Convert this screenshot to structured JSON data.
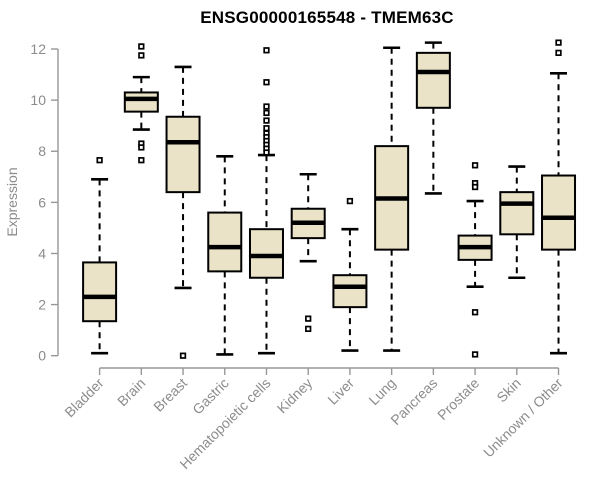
{
  "figure": {
    "background": "#ffffff"
  },
  "colors": {
    "box_fill": "#EAE3C7",
    "box_stroke": "#000000",
    "median_color": "#000000",
    "whisker_color": "#000000",
    "outlier_fill": "#ffffff",
    "axis_line": "#979797",
    "tick_label": "#8C8C8C",
    "title_color": "#000000"
  },
  "chart_data": {
    "type": "boxplot",
    "title": "ENSG00000165548 - TMEM63C",
    "xlabel": "",
    "ylabel": "Expression",
    "ylim": [
      0,
      12.3
    ],
    "yticks": [
      0,
      2,
      4,
      6,
      8,
      10,
      12
    ],
    "grid": false,
    "legend": "none",
    "categories": [
      "Bladder",
      "Brain",
      "Breast",
      "Gastric",
      "Hematopoietic cells",
      "Kidney",
      "Liver",
      "Lung",
      "Pancreas",
      "Prostate",
      "Skin",
      "Unknown / Other"
    ],
    "series": [
      {
        "name": "Bladder",
        "whislo": 0.1,
        "q1": 1.35,
        "med": 2.3,
        "q3": 3.65,
        "whishi": 6.9,
        "outliers": [
          7.65
        ]
      },
      {
        "name": "Brain",
        "whislo": 8.85,
        "q1": 9.55,
        "med": 10.05,
        "q3": 10.3,
        "whishi": 10.9,
        "outliers": [
          12.1,
          11.75,
          8.3,
          8.15,
          7.65
        ]
      },
      {
        "name": "Breast",
        "whislo": 2.65,
        "q1": 6.4,
        "med": 8.35,
        "q3": 9.35,
        "whishi": 11.3,
        "outliers": [
          0.0
        ]
      },
      {
        "name": "Gastric",
        "whislo": 0.05,
        "q1": 3.3,
        "med": 4.25,
        "q3": 5.6,
        "whishi": 7.8,
        "outliers": []
      },
      {
        "name": "Hematopoietic cells",
        "whislo": 0.1,
        "q1": 3.05,
        "med": 3.9,
        "q3": 4.95,
        "whishi": 7.85,
        "outliers": [
          11.95,
          10.7,
          9.75,
          9.5,
          9.2,
          8.9,
          8.7,
          8.55,
          8.4,
          8.25,
          8.1,
          7.95
        ]
      },
      {
        "name": "Kidney",
        "whislo": 3.7,
        "q1": 4.6,
        "med": 5.2,
        "q3": 5.75,
        "whishi": 7.1,
        "outliers": [
          1.45,
          1.05
        ]
      },
      {
        "name": "Liver",
        "whislo": 0.2,
        "q1": 1.9,
        "med": 2.7,
        "q3": 3.15,
        "whishi": 4.95,
        "outliers": [
          6.05
        ]
      },
      {
        "name": "Lung",
        "whislo": 0.2,
        "q1": 4.15,
        "med": 6.15,
        "q3": 8.2,
        "whishi": 12.05,
        "outliers": []
      },
      {
        "name": "Pancreas",
        "whislo": 6.35,
        "q1": 9.7,
        "med": 11.1,
        "q3": 11.85,
        "whishi": 12.25,
        "outliers": []
      },
      {
        "name": "Prostate",
        "whislo": 2.7,
        "q1": 3.75,
        "med": 4.25,
        "q3": 4.7,
        "whishi": 6.05,
        "outliers": [
          7.45,
          6.75,
          6.6,
          1.7,
          0.05
        ]
      },
      {
        "name": "Skin",
        "whislo": 3.05,
        "q1": 4.75,
        "med": 5.95,
        "q3": 6.4,
        "whishi": 7.4,
        "outliers": []
      },
      {
        "name": "Unknown / Other",
        "whislo": 0.1,
        "q1": 4.15,
        "med": 5.4,
        "q3": 7.05,
        "whishi": 11.05,
        "outliers": [
          12.25,
          11.85
        ]
      }
    ]
  }
}
